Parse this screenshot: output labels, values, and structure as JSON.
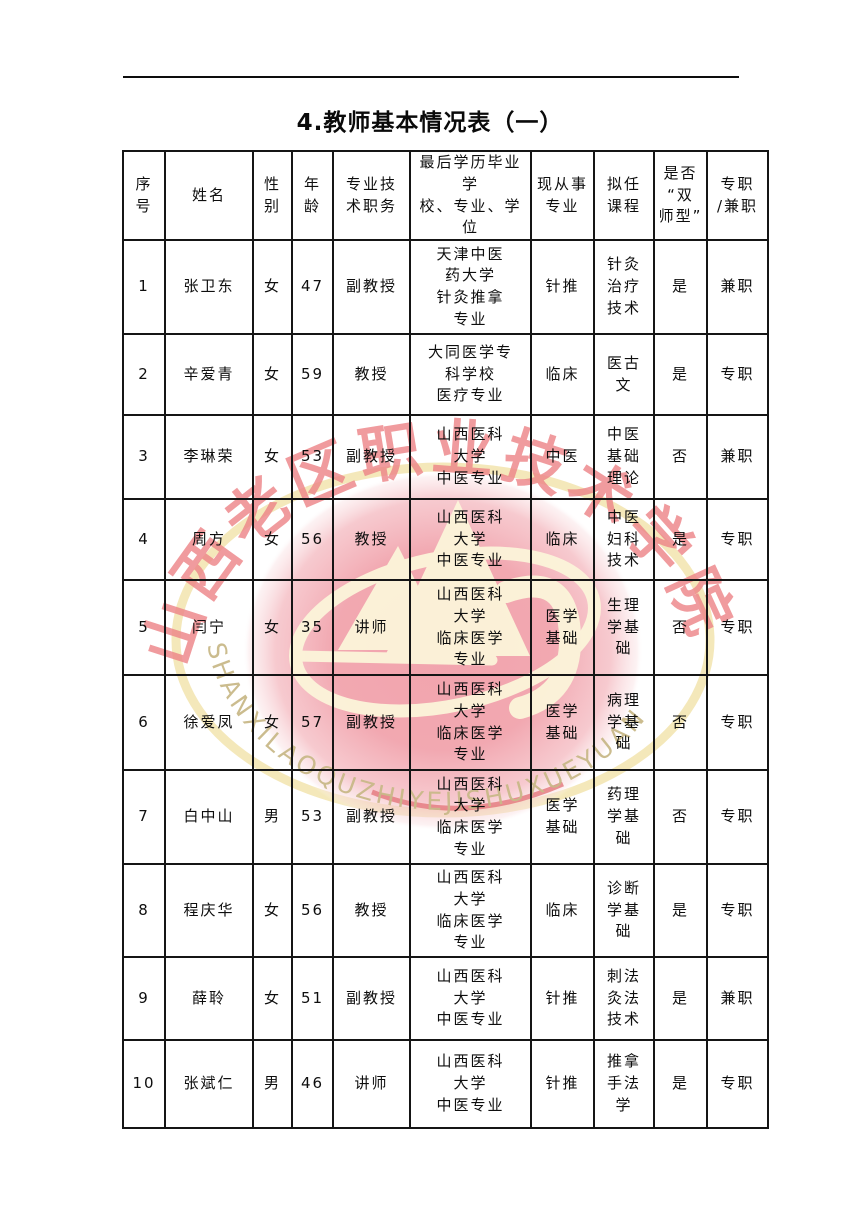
{
  "page": {
    "title": "4.教师基本情况表（一）"
  },
  "watermark": {
    "seal_top_text": "山西老区职业技术学院",
    "seal_bottom_text": "SHANXILAOQUZHIYEJISHUXUEYUAN",
    "colors": {
      "circle_pink": "#f1a0a9",
      "ring_yellow": "#f3e5b2",
      "calligraphy_red": "#ed8689",
      "logo_cream": "#fcf5da",
      "english_khaki": "#c9b989"
    }
  },
  "table": {
    "columns": [
      {
        "key": "xuhao",
        "label": "序\n号"
      },
      {
        "key": "xingming",
        "label": "姓名"
      },
      {
        "key": "xingbie",
        "label": "性\n别"
      },
      {
        "key": "nianling",
        "label": "年\n龄"
      },
      {
        "key": "zhiwu",
        "label": "专业技\n术职务"
      },
      {
        "key": "xueli",
        "label": "最后学历毕业学\n校、专业、学位"
      },
      {
        "key": "congshi",
        "label": "现从事\n专业"
      },
      {
        "key": "kecheng",
        "label": "拟任\n课程"
      },
      {
        "key": "shuangshi",
        "label": "是否\n“双\n师型”"
      },
      {
        "key": "zhuanzhi",
        "label": "专职\n/兼职"
      }
    ],
    "rows": [
      {
        "cells": [
          "1",
          "张卫东",
          "女",
          "47",
          "副教授",
          "天津中医\n药大学\n针灸推拿\n专业",
          "针推",
          "针灸\n治疗\n技术",
          "是",
          "兼职"
        ]
      },
      {
        "cells": [
          "2",
          "辛爱青",
          "女",
          "59",
          "教授",
          "大同医学专\n科学校\n医疗专业",
          "临床",
          "医古\n文",
          "是",
          "专职"
        ]
      },
      {
        "cells": [
          "3",
          "李琳荣",
          "女",
          "53",
          "副教授",
          "山西医科\n大学\n中医专业",
          "中医",
          "中医\n基础\n理论",
          "否",
          "兼职"
        ]
      },
      {
        "cells": [
          "4",
          "周方",
          "女",
          "56",
          "教授",
          "山西医科\n大学\n中医专业",
          "临床",
          "中医\n妇科\n技术",
          "是",
          "专职"
        ]
      },
      {
        "cells": [
          "5",
          "闫宁",
          "女",
          "35",
          "讲师",
          "山西医科\n大学\n临床医学\n专业",
          "医学\n基础",
          "生理\n学基\n础",
          "否",
          "专职"
        ]
      },
      {
        "cells": [
          "6",
          "徐爱凤",
          "女",
          "57",
          "副教授",
          "山西医科\n大学\n临床医学\n专业",
          "医学\n基础",
          "病理\n学基\n础",
          "否",
          "专职"
        ]
      },
      {
        "cells": [
          "7",
          "白中山",
          "男",
          "53",
          "副教授",
          "山西医科\n大学\n临床医学\n专业",
          "医学\n基础",
          "药理\n学基\n础",
          "否",
          "专职"
        ]
      },
      {
        "cells": [
          "8",
          "程庆华",
          "女",
          "56",
          "教授",
          "山西医科\n大学\n临床医学\n专业",
          "临床",
          "诊断\n学基\n础",
          "是",
          "专职"
        ]
      },
      {
        "cells": [
          "9",
          "薛聆",
          "女",
          "51",
          "副教授",
          "山西医科\n大学\n中医专业",
          "针推",
          "刺法\n灸法\n技术",
          "是",
          "兼职"
        ]
      },
      {
        "cells": [
          "10",
          "张斌仁",
          "男",
          "46",
          "讲师",
          "山西医科\n大学\n中医专业",
          "针推",
          "推拿\n手法\n学",
          "是",
          "专职"
        ]
      }
    ]
  }
}
